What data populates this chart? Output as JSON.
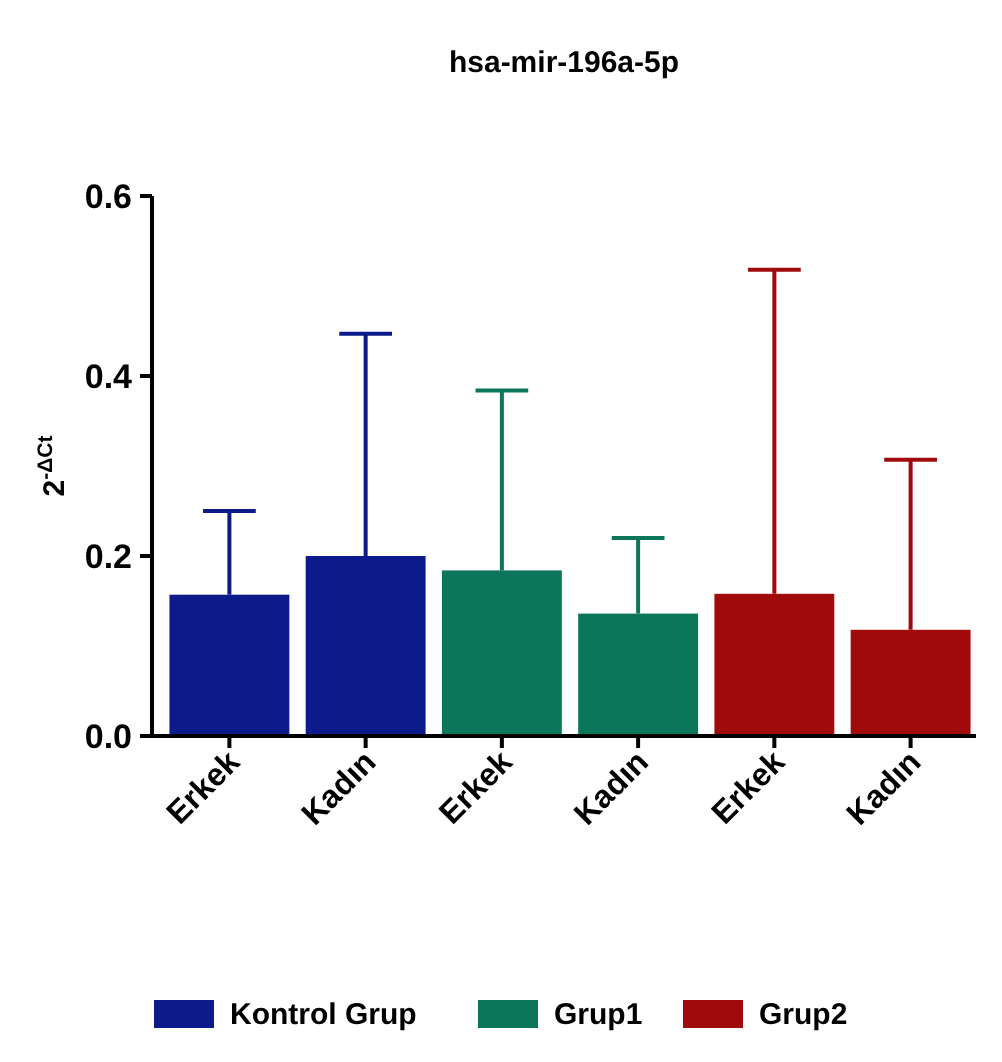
{
  "chart_data": {
    "type": "bar",
    "title": "hsa-mir-196a-5p",
    "ylabel": "2$^{-ΔCt}$",
    "categories": [
      "Erkek",
      "Kadın",
      "Erkek",
      "Kadın",
      "Erkek",
      "Kadın"
    ],
    "series": [
      {
        "name": "Kontrol Grup",
        "color": "#0c1a8a",
        "values": [
          0.157,
          0.2,
          null,
          null,
          null,
          null
        ],
        "errors": [
          [
            0.157,
            0.25
          ],
          [
            0.2,
            0.447
          ],
          null,
          null,
          null,
          null
        ]
      },
      {
        "name": "Grup1",
        "color": "#0b7659",
        "values": [
          null,
          null,
          0.184,
          0.136,
          null,
          null
        ],
        "errors": [
          null,
          null,
          [
            0.184,
            0.384
          ],
          [
            0.136,
            0.22
          ],
          null,
          null
        ]
      },
      {
        "name": "Grup2",
        "color": "#a10a0a",
        "values": [
          null,
          null,
          null,
          null,
          0.158,
          0.118
        ],
        "errors": [
          null,
          null,
          null,
          null,
          [
            0.158,
            0.518
          ],
          [
            0.118,
            0.307
          ]
        ]
      }
    ],
    "ylim": [
      0,
      0.6
    ],
    "yticks": [
      {
        "value": 0,
        "label": "0.0"
      },
      {
        "value": 0.2,
        "label": "0.2"
      },
      {
        "value": 0.4,
        "label": "0.4"
      },
      {
        "value": 0.6,
        "label": "0.6"
      }
    ],
    "legend": "bottom"
  }
}
